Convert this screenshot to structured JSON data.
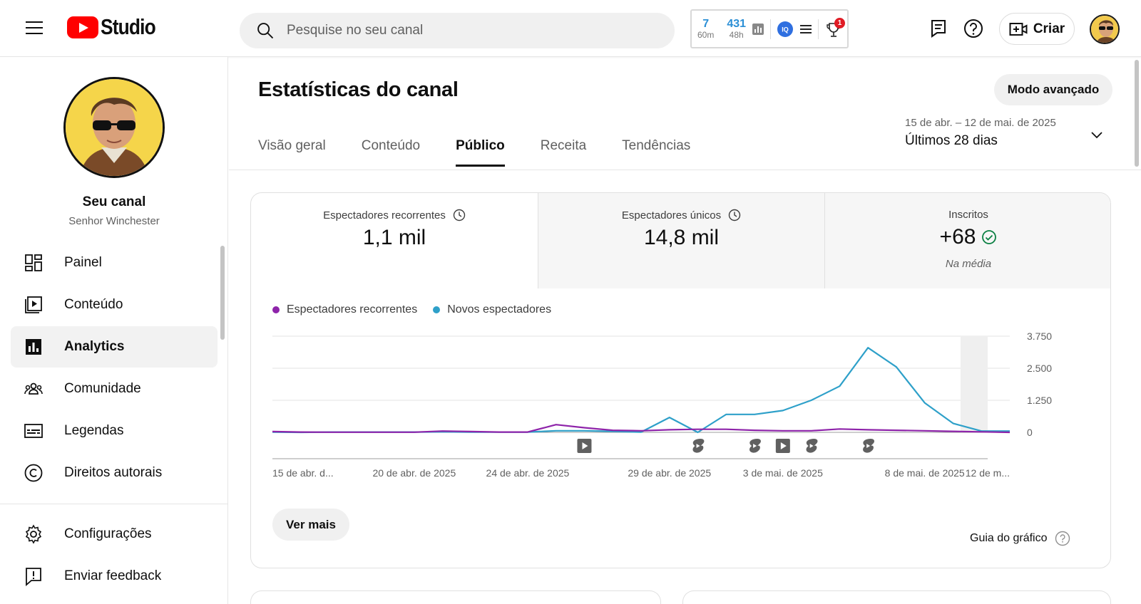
{
  "header": {
    "logo_text": "Studio",
    "search_placeholder": "Pesquise no seu canal",
    "extension": {
      "stat1_value": "7",
      "stat1_unit": "60m",
      "stat2_value": "431",
      "stat2_unit": "48h",
      "badge_count": "1"
    },
    "create_label": "Criar"
  },
  "sidebar": {
    "channel_title": "Seu canal",
    "channel_handle": "Senhor Winchester",
    "items": [
      {
        "label": "Painel",
        "icon": "dashboard-icon"
      },
      {
        "label": "Conteúdo",
        "icon": "content-icon"
      },
      {
        "label": "Analytics",
        "icon": "analytics-icon",
        "active": true
      },
      {
        "label": "Comunidade",
        "icon": "community-icon"
      },
      {
        "label": "Legendas",
        "icon": "subtitles-icon"
      },
      {
        "label": "Direitos autorais",
        "icon": "copyright-icon"
      }
    ],
    "bottom_items": [
      {
        "label": "Configurações",
        "icon": "settings-icon"
      },
      {
        "label": "Enviar feedback",
        "icon": "feedback-icon"
      }
    ]
  },
  "main": {
    "title": "Estatísticas do canal",
    "advanced_label": "Modo avançado",
    "tabs": [
      {
        "label": "Visão geral"
      },
      {
        "label": "Conteúdo"
      },
      {
        "label": "Público",
        "active": true
      },
      {
        "label": "Receita"
      },
      {
        "label": "Tendências"
      }
    ],
    "date_range": "15 de abr. – 12 de mai. de 2025",
    "period": "Últimos 28 dias"
  },
  "metrics": [
    {
      "label": "Espectadores recorrentes",
      "value": "1,1 mil"
    },
    {
      "label": "Espectadores únicos",
      "value": "14,8 mil"
    },
    {
      "label": "Inscritos",
      "value": "+68",
      "sub": "Na média"
    }
  ],
  "chart_data": {
    "type": "line",
    "series": [
      {
        "name": "Espectadores recorrentes",
        "color": "#8e24aa",
        "values": [
          30,
          10,
          5,
          5,
          5,
          5,
          50,
          30,
          10,
          10,
          300,
          180,
          80,
          60,
          100,
          120,
          120,
          80,
          60,
          60,
          130,
          100,
          80,
          60,
          40,
          20,
          0
        ]
      },
      {
        "name": "Novos espectadores",
        "color": "#2ea0c9",
        "values": [
          10,
          0,
          10,
          10,
          10,
          10,
          20,
          10,
          10,
          10,
          60,
          60,
          40,
          10,
          580,
          0,
          700,
          700,
          850,
          1250,
          1800,
          3300,
          2550,
          1150,
          350,
          50,
          50
        ]
      }
    ],
    "x_tick_labels": [
      "15 de abr. d...",
      "20 de abr. de 2025",
      "24 de abr. de 2025",
      "29 de abr. de 2025",
      "3 de mai. de 2025",
      "8 de mai. de 2025",
      "12 de m..."
    ],
    "y_tick_labels": [
      "3.750",
      "2.500",
      "1.250",
      "0"
    ],
    "ylim": [
      0,
      3750
    ]
  },
  "chart_markers": [
    {
      "type": "video"
    },
    {
      "type": "short"
    },
    {
      "type": "short"
    },
    {
      "type": "video"
    },
    {
      "type": "short"
    },
    {
      "type": "short"
    }
  ],
  "see_more_label": "Ver mais",
  "guide_label": "Guia do gráfico"
}
